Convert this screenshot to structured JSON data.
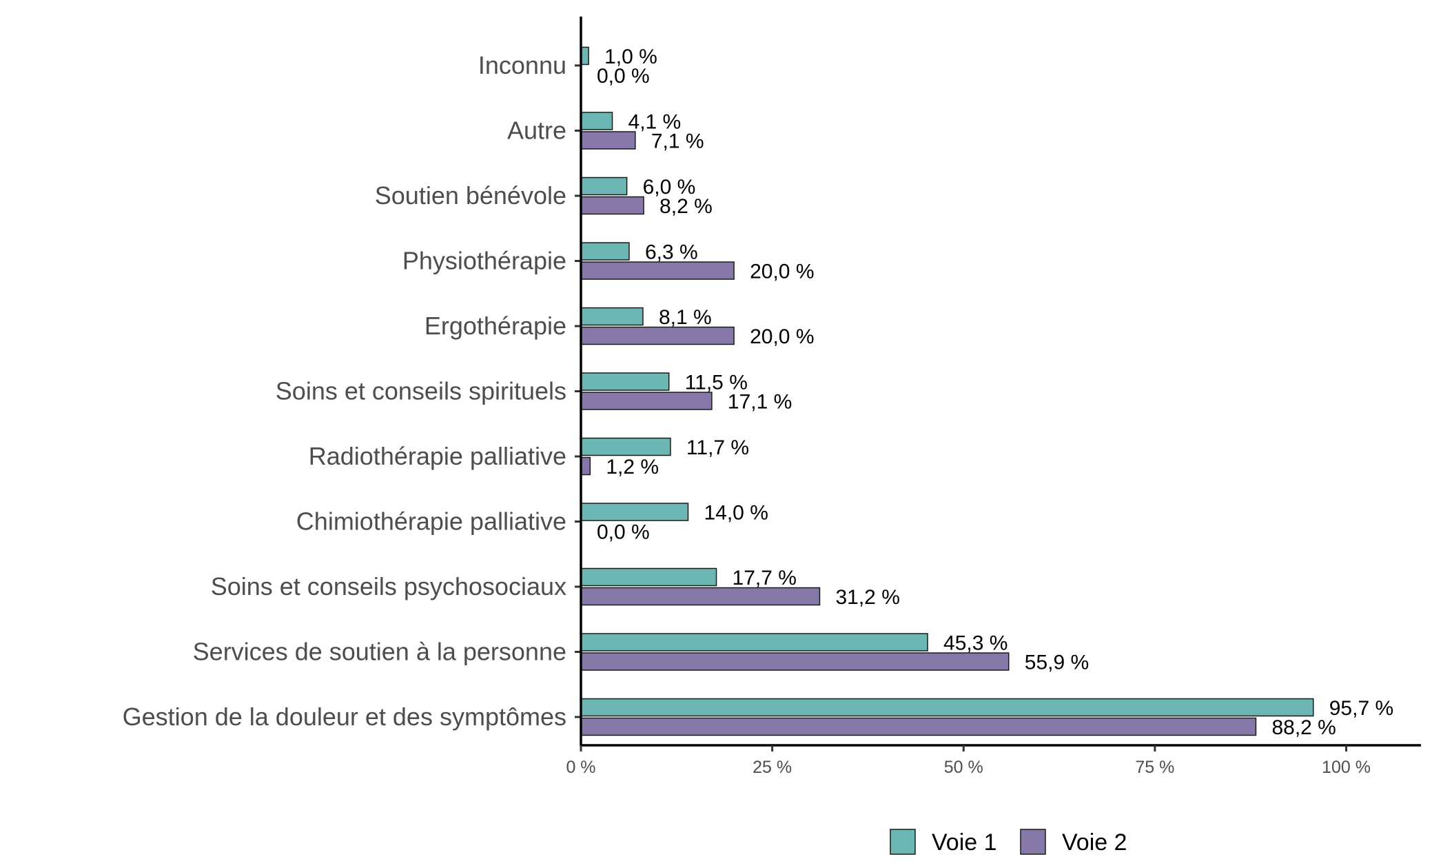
{
  "chart_data": {
    "type": "bar",
    "orientation": "horizontal",
    "categories": [
      "Inconnu",
      "Autre",
      "Soutien bénévole",
      "Physiothérapie",
      "Ergothérapie",
      "Soins et conseils spirituels",
      "Radiothérapie palliative",
      "Chimiothérapie palliative",
      "Soins et conseils psychosociaux",
      "Services de soutien à la personne",
      "Gestion de la douleur et des symptômes"
    ],
    "series": [
      {
        "name": "Voie 1",
        "color": "#6cb6b3",
        "values": [
          1.0,
          4.1,
          6.0,
          6.3,
          8.1,
          11.5,
          11.7,
          14.0,
          17.7,
          45.3,
          95.7
        ],
        "labels": [
          "1,0 %",
          "4,1 %",
          "6,0 %",
          "6,3 %",
          "8,1 %",
          "11,5 %",
          "11,7 %",
          "14,0 %",
          "17,7 %",
          "45,3 %",
          "95,7 %"
        ]
      },
      {
        "name": "Voie 2",
        "color": "#8679aa",
        "values": [
          0.0,
          7.1,
          8.2,
          20.0,
          20.0,
          17.1,
          1.2,
          0.0,
          31.2,
          55.9,
          88.2
        ],
        "labels": [
          "0,0 %",
          "7,1 %",
          "8,2 %",
          "20,0 %",
          "20,0 %",
          "17,1 %",
          "1,2 %",
          "0,0 %",
          "31,2 %",
          "55,9 %",
          "88,2 %"
        ]
      }
    ],
    "xlim": [
      0,
      110
    ],
    "xticks": [
      0,
      25,
      50,
      75,
      100
    ],
    "xtick_labels": [
      "0 %",
      "25 %",
      "50 %",
      "75 %",
      "100 %"
    ],
    "title": "",
    "xlabel": "",
    "ylabel": "",
    "grid": false,
    "legend_position": "bottom"
  }
}
